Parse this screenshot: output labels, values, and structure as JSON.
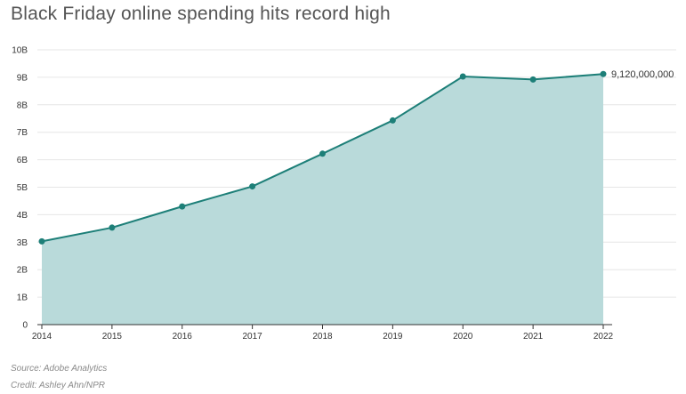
{
  "chart_data": {
    "type": "area",
    "title": "Black Friday online spending hits record high",
    "categories": [
      "2014",
      "2015",
      "2016",
      "2017",
      "2018",
      "2019",
      "2020",
      "2021",
      "2022"
    ],
    "series": [
      {
        "values": [
          3030000000,
          3530000000,
          4300000000,
          5030000000,
          6220000000,
          7430000000,
          9030000000,
          8920000000,
          9120000000
        ]
      }
    ],
    "end_label": "9,120,000,000",
    "y_ticks": [
      0,
      1,
      2,
      3,
      4,
      5,
      6,
      7,
      8,
      9,
      10
    ],
    "y_tick_labels": [
      "0",
      "1B",
      "2B",
      "3B",
      "4B",
      "5B",
      "6B",
      "7B",
      "8B",
      "9B",
      "10B"
    ],
    "ylim": [
      0,
      10000000000
    ],
    "xlabel": "",
    "ylabel": "",
    "grid": true,
    "colors": {
      "line": "#1d7f78",
      "fill": "#b9dada",
      "grid": "#e6e6e6"
    }
  },
  "footer": {
    "source": "Source: Adobe Analytics",
    "credit": "Credit: Ashley Ahn/NPR"
  }
}
